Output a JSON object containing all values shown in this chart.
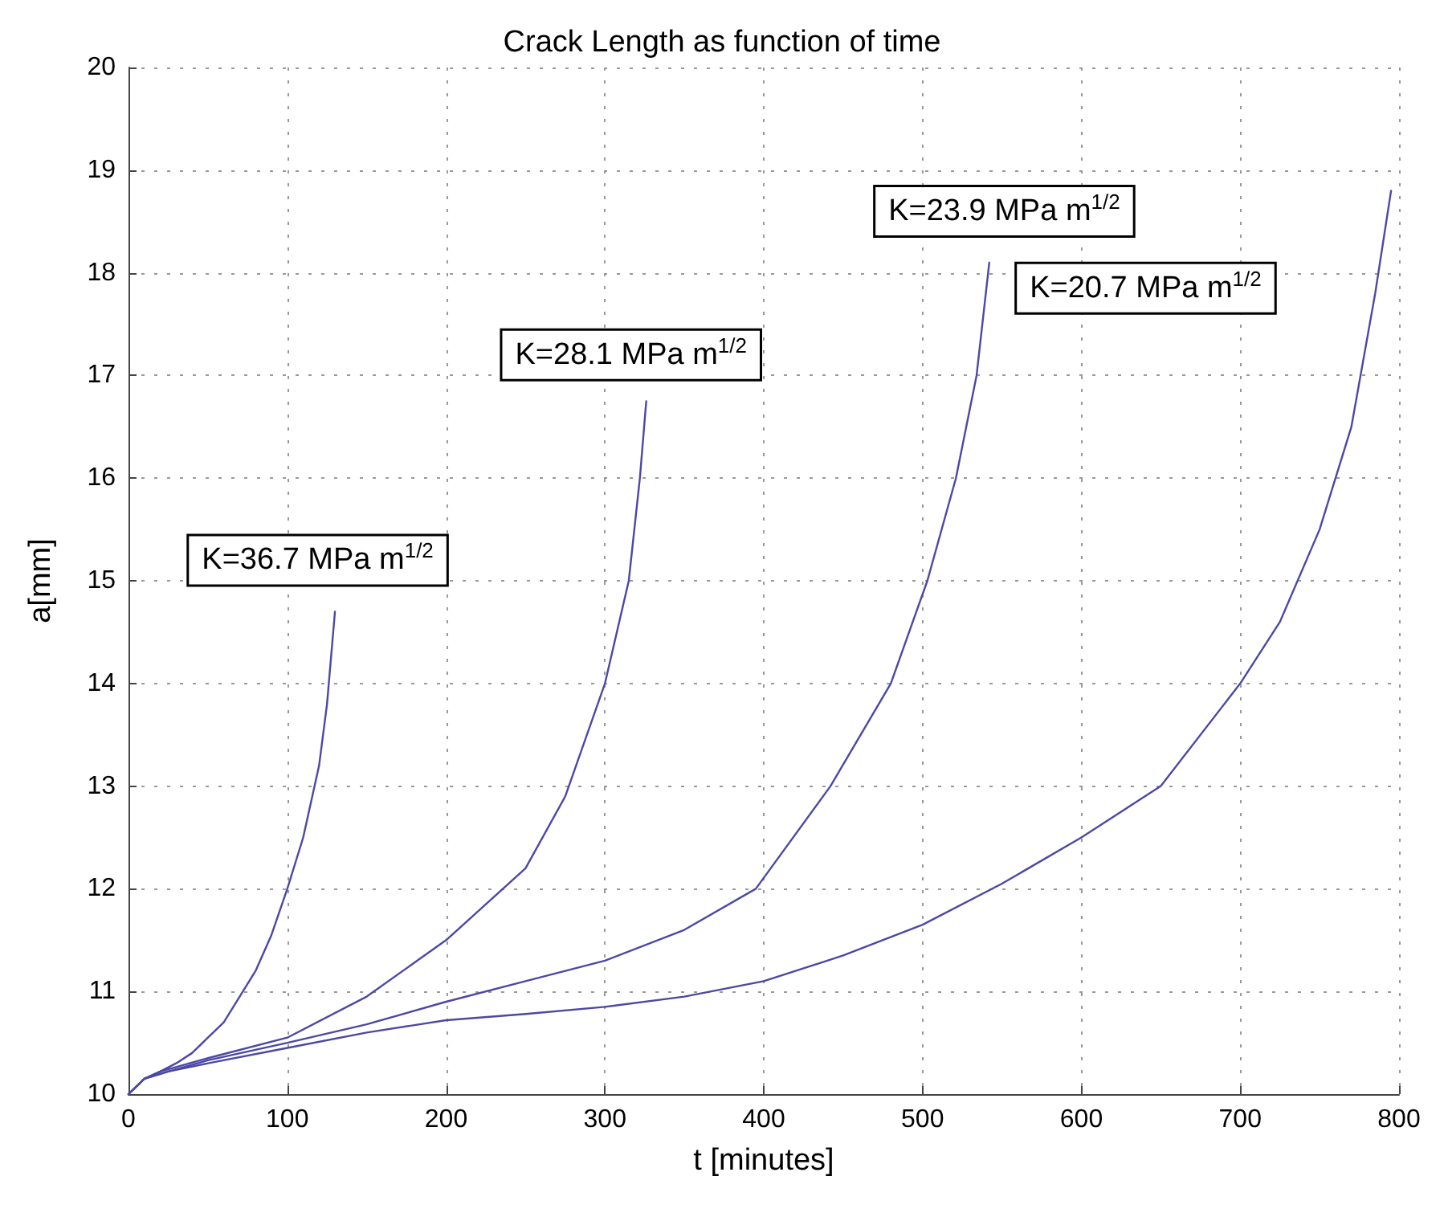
{
  "chart_data": {
    "type": "line",
    "title": "Crack Length as function of time",
    "xlabel": "t [minutes]",
    "ylabel": "a[mm]",
    "xlim": [
      0,
      800
    ],
    "xticks": [
      0,
      100,
      200,
      300,
      400,
      500,
      600,
      700,
      800
    ],
    "ylim": [
      10,
      20
    ],
    "yticks": [
      10,
      11,
      12,
      13,
      14,
      15,
      16,
      17,
      18,
      19,
      20
    ],
    "grid": true,
    "marker": "none",
    "line_style": "solid",
    "series": [
      {
        "color": "#4b48a6",
        "x": [
          0,
          10,
          20,
          30,
          40,
          50,
          60,
          70,
          80,
          90,
          100,
          110,
          120,
          125,
          130
        ],
        "values": [
          10,
          10.15,
          10.22,
          10.3,
          10.4,
          10.55,
          10.7,
          10.95,
          11.2,
          11.55,
          12.0,
          12.5,
          13.2,
          13.8,
          14.7
        ]
      },
      {
        "color": "#4b48a6",
        "x": [
          0,
          10,
          20,
          50,
          100,
          150,
          200,
          250,
          275,
          300,
          315,
          322,
          326
        ],
        "values": [
          10,
          10.15,
          10.22,
          10.35,
          10.55,
          10.95,
          11.5,
          12.2,
          12.9,
          14.0,
          15.0,
          16.0,
          16.75
        ]
      },
      {
        "color": "#4b48a6",
        "x": [
          0,
          10,
          25,
          50,
          100,
          150,
          200,
          250,
          300,
          350,
          395,
          442,
          480,
          503,
          521,
          534,
          542
        ],
        "values": [
          10,
          10.15,
          10.22,
          10.33,
          10.5,
          10.68,
          10.9,
          11.1,
          11.3,
          11.6,
          12.0,
          13.0,
          14.0,
          15.0,
          16.0,
          17.0,
          18.1
        ]
      },
      {
        "color": "#4b48a6",
        "x": [
          0,
          10,
          25,
          50,
          100,
          150,
          200,
          250,
          300,
          350,
          400,
          450,
          500,
          550,
          600,
          650,
          700,
          725,
          750,
          770,
          785,
          795
        ],
        "values": [
          10,
          10.15,
          10.22,
          10.3,
          10.45,
          10.6,
          10.72,
          10.78,
          10.85,
          10.95,
          11.1,
          11.35,
          11.65,
          12.05,
          12.5,
          13.0,
          14.0,
          14.6,
          15.5,
          16.5,
          17.8,
          18.8
        ]
      }
    ],
    "annotations": [
      "K=36.7 MPa m$^{1/2}$",
      "K=28.1 MPa m$^{1/2}$",
      "K=23.9 MPa m$^{1/2}$",
      "K=20.7 MPa m$^{1/2}$"
    ]
  }
}
